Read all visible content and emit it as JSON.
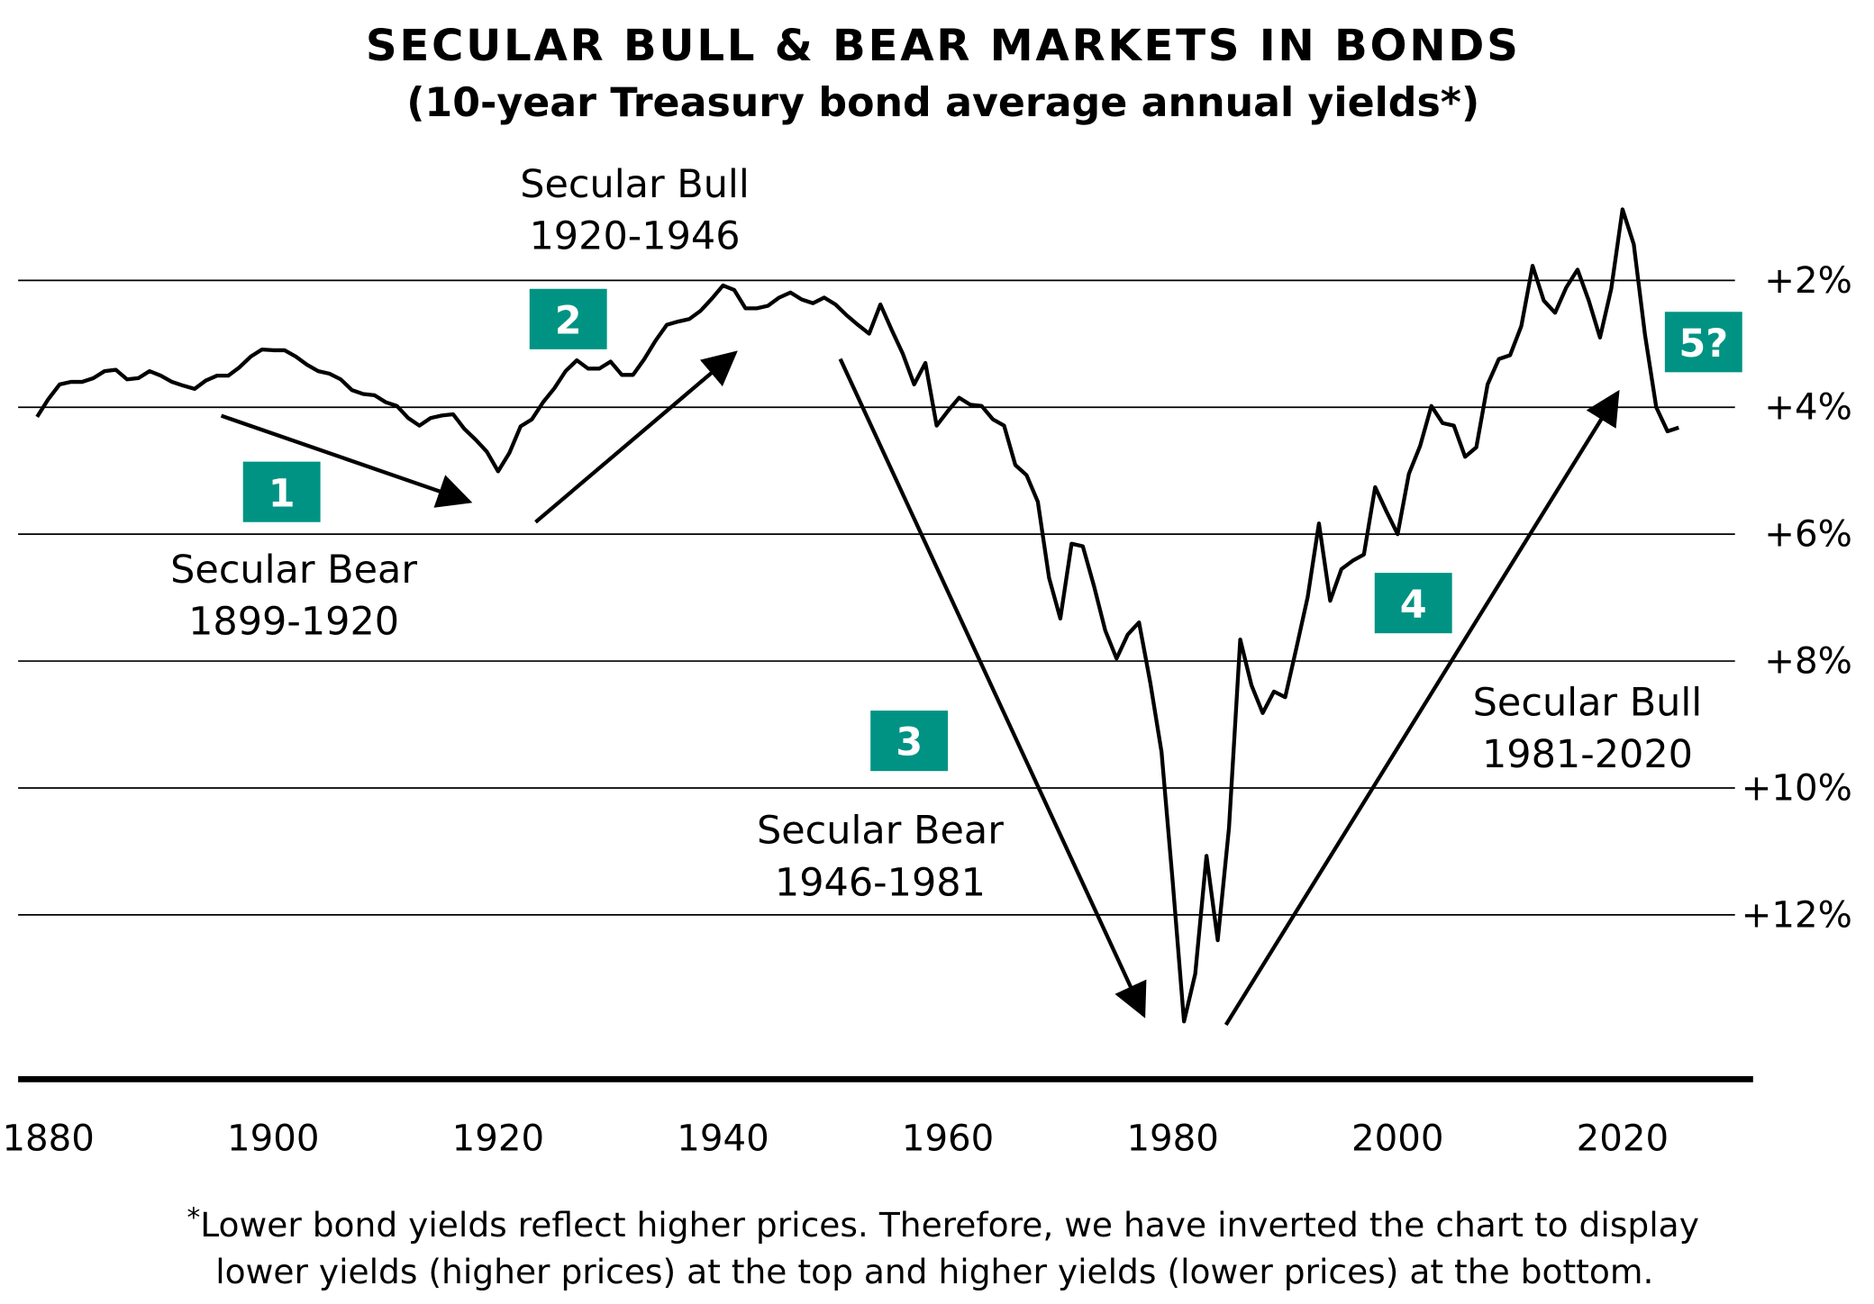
{
  "chart_data": {
    "type": "line",
    "title": "SECULAR BULL & BEAR MARKETS IN BONDS",
    "subtitle": "(10-year Treasury bond average annual yields*)",
    "xlabel": "",
    "ylabel": "",
    "y_inverted": true,
    "xlim": [
      1878,
      2035
    ],
    "ylim": [
      0,
      14
    ],
    "grid": "horizontal",
    "x_ticks": [
      "1880",
      "1900",
      "1920",
      "1940",
      "1960",
      "1980",
      "2000",
      "2020"
    ],
    "y_ticks": [
      {
        "value": 2,
        "label": "+2%"
      },
      {
        "value": 4,
        "label": "+4%"
      },
      {
        "value": 6,
        "label": "+6%"
      },
      {
        "value": 8,
        "label": "+8%"
      },
      {
        "value": 10,
        "label": "+10%"
      },
      {
        "value": 12,
        "label": "+12%"
      }
    ],
    "line_color": "#000000",
    "badge_color": "#009383",
    "x": [
      1879,
      1880,
      1881,
      1882,
      1883,
      1884,
      1885,
      1886,
      1887,
      1888,
      1889,
      1890,
      1891,
      1892,
      1893,
      1894,
      1895,
      1896,
      1897,
      1898,
      1899,
      1900,
      1901,
      1902,
      1903,
      1904,
      1905,
      1906,
      1907,
      1908,
      1909,
      1910,
      1911,
      1912,
      1913,
      1914,
      1915,
      1916,
      1917,
      1918,
      1919,
      1920,
      1921,
      1922,
      1923,
      1924,
      1925,
      1926,
      1927,
      1928,
      1929,
      1930,
      1931,
      1932,
      1933,
      1934,
      1935,
      1936,
      1937,
      1938,
      1939,
      1940,
      1941,
      1942,
      1943,
      1944,
      1945,
      1946,
      1947,
      1948,
      1949,
      1950,
      1951,
      1952,
      1953,
      1954,
      1955,
      1956,
      1957,
      1958,
      1959,
      1960,
      1961,
      1962,
      1963,
      1964,
      1965,
      1966,
      1967,
      1968,
      1969,
      1970,
      1971,
      1972,
      1973,
      1974,
      1975,
      1976,
      1977,
      1978,
      1979,
      1980,
      1981,
      1982,
      1983,
      1984,
      1985,
      1986,
      1987,
      1988,
      1989,
      1990,
      1991,
      1992,
      1993,
      1994,
      1995,
      1996,
      1997,
      1998,
      1999,
      2000,
      2001,
      2002,
      2003,
      2004,
      2005,
      2006,
      2007,
      2008,
      2009,
      2010,
      2011,
      2012,
      2013,
      2014,
      2015,
      2016,
      2017,
      2018,
      2019,
      2020,
      2021,
      2022,
      2023,
      2024,
      2025
    ],
    "y": [
      4.15,
      3.87,
      3.64,
      3.6,
      3.6,
      3.54,
      3.43,
      3.41,
      3.56,
      3.54,
      3.43,
      3.5,
      3.6,
      3.66,
      3.71,
      3.58,
      3.5,
      3.5,
      3.37,
      3.2,
      3.09,
      3.1,
      3.1,
      3.2,
      3.33,
      3.43,
      3.47,
      3.56,
      3.73,
      3.79,
      3.81,
      3.92,
      3.98,
      4.17,
      4.29,
      4.17,
      4.13,
      4.11,
      4.34,
      4.51,
      4.7,
      5.01,
      4.72,
      4.3,
      4.19,
      3.92,
      3.7,
      3.43,
      3.26,
      3.39,
      3.39,
      3.28,
      3.49,
      3.49,
      3.24,
      2.95,
      2.7,
      2.65,
      2.61,
      2.48,
      2.29,
      2.08,
      2.15,
      2.44,
      2.44,
      2.4,
      2.27,
      2.19,
      2.3,
      2.36,
      2.27,
      2.38,
      2.55,
      2.7,
      2.84,
      2.38,
      2.78,
      3.16,
      3.64,
      3.3,
      4.29,
      4.06,
      3.85,
      3.96,
      3.98,
      4.19,
      4.29,
      4.91,
      5.07,
      5.49,
      6.69,
      7.33,
      6.15,
      6.19,
      6.82,
      7.52,
      7.96,
      7.58,
      7.39,
      8.34,
      9.43,
      11.49,
      13.68,
      12.93,
      11.07,
      12.4,
      10.63,
      7.66,
      8.38,
      8.82,
      8.48,
      8.57,
      7.79,
      6.99,
      5.83,
      7.05,
      6.55,
      6.42,
      6.32,
      5.26,
      5.64,
      6.0,
      5.05,
      4.61,
      3.98,
      4.25,
      4.29,
      4.78,
      4.63,
      3.64,
      3.24,
      3.18,
      2.72,
      1.77,
      2.32,
      2.51,
      2.11,
      1.83,
      2.32,
      2.9,
      2.13,
      0.88,
      1.43,
      2.86,
      4.0,
      4.38,
      4.32
    ],
    "annotations": [
      {
        "badge": "1",
        "label_line1": "Secular Bear",
        "label_line2": "1899-1920"
      },
      {
        "badge": "2",
        "label_line1": "Secular Bull",
        "label_line2": "1920-1946"
      },
      {
        "badge": "3",
        "label_line1": "Secular Bear",
        "label_line2": "1946-1981"
      },
      {
        "badge": "4",
        "label_line1": "Secular Bull",
        "label_line2": "1981-2020"
      },
      {
        "badge": "5?"
      }
    ],
    "footnote_marker": "*",
    "footnote_line1": "Lower bond yields reflect higher prices. Therefore, we have inverted the chart to display",
    "footnote_line2": "lower yields (higher prices) at the top and higher yields (lower prices) at the bottom."
  }
}
